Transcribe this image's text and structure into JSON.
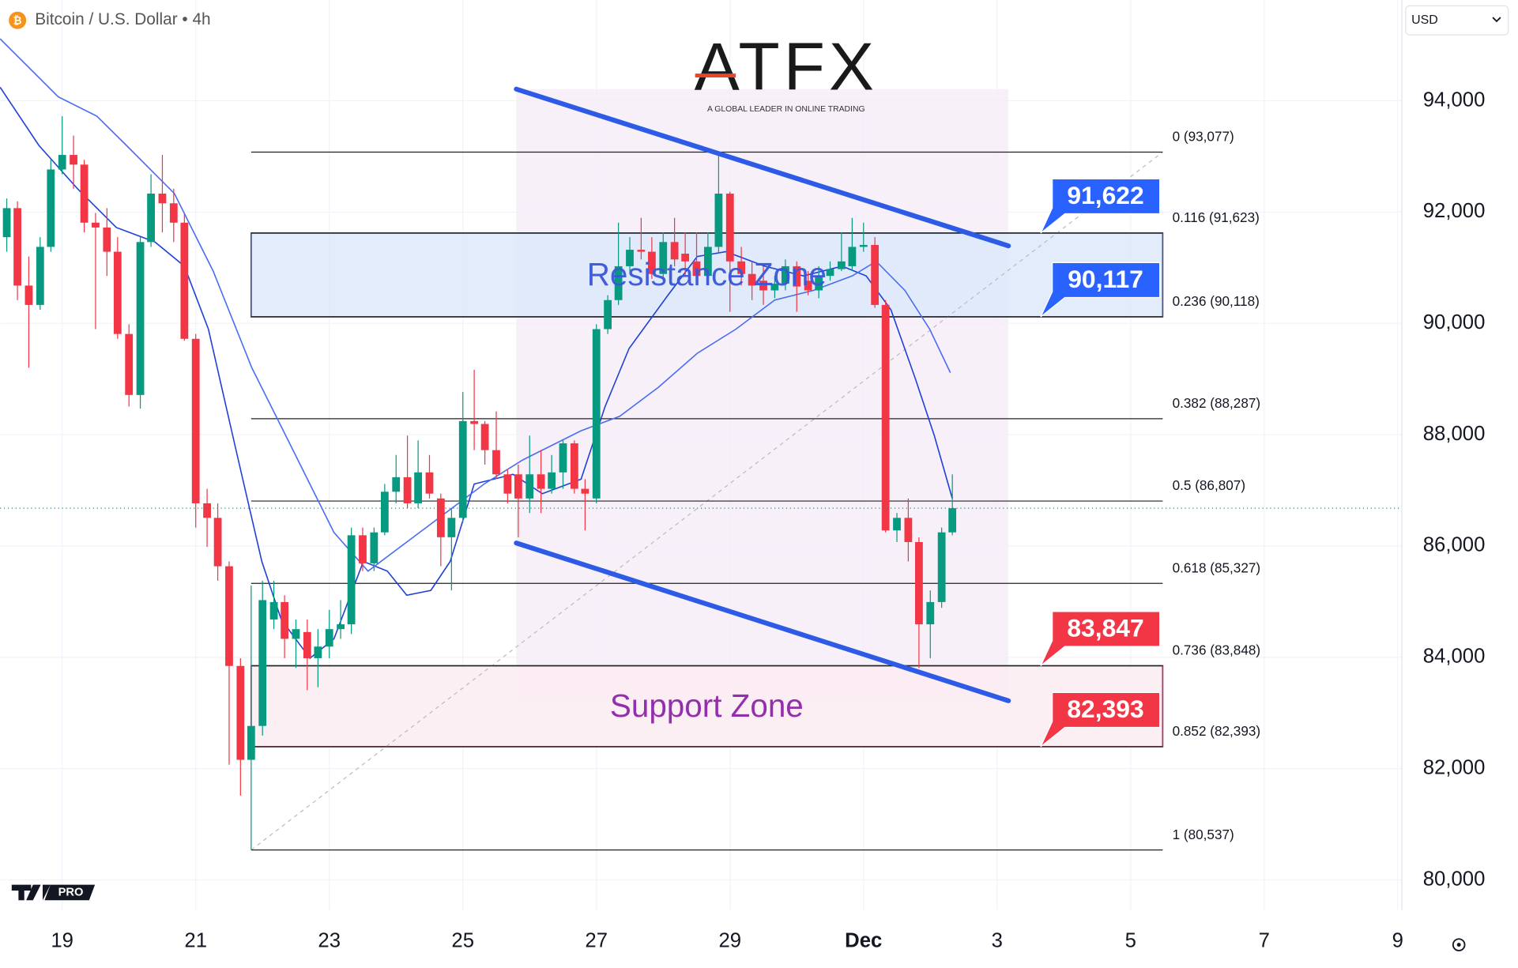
{
  "header": {
    "symbol": "Bitcoin / U.S. Dollar • 4h",
    "currency": "USD"
  },
  "logo": {
    "name": "ATFX",
    "tagline": "A GLOBAL LEADER IN ONLINE TRADING"
  },
  "badge": "PRO",
  "chart_data": {
    "type": "candlestick",
    "x": [
      18.17,
      18.33,
      18.5,
      18.67,
      18.83,
      19,
      19.17,
      19.33,
      19.5,
      19.67,
      19.83,
      20,
      20.17,
      20.33,
      20.5,
      20.67,
      20.83,
      21,
      21.17,
      21.33,
      21.5,
      21.67,
      21.83,
      22,
      22.17,
      22.33,
      22.5,
      22.67,
      22.83,
      23,
      23.17,
      23.33,
      23.5,
      23.67,
      23.83,
      24,
      24.17,
      24.33,
      24.5,
      24.67,
      24.83,
      25,
      25.17,
      25.33,
      25.5,
      25.67,
      25.83,
      26,
      26.17,
      26.33,
      26.5,
      26.67,
      26.83,
      27,
      27.17,
      27.33,
      27.5,
      27.67,
      27.83,
      28,
      28.17,
      28.33,
      28.5,
      28.67,
      28.83,
      29,
      29.17,
      29.33,
      29.5,
      29.67,
      29.83,
      30,
      30.17,
      30.33,
      30.5,
      30.67,
      30.83,
      31,
      31.17,
      31.33,
      31.5,
      31.67,
      31.83,
      32,
      32.17,
      32.33
    ],
    "open": [
      91548,
      92070,
      90679,
      90331,
      91374,
      92765,
      93026,
      92852,
      91809,
      91722,
      91287,
      89809,
      88713,
      91461,
      92331,
      92157,
      91809,
      89722,
      86766,
      86505,
      85635,
      83844,
      82157,
      82766,
      84679,
      84992,
      84331,
      84453,
      83983,
      84192,
      84505,
      84592,
      86192,
      85688,
      86244,
      86974,
      87235,
      86766,
      87322,
      86853,
      86157,
      86505,
      88244,
      88192,
      87722,
      87287,
      87287,
      86853,
      87287,
      87027,
      87322,
      87844,
      87027,
      86853,
      89896,
      90418,
      91026,
      91322,
      91287,
      90887,
      91461,
      91252,
      91113,
      90852,
      91374,
      92331,
      91113,
      90887,
      90766,
      90592,
      90713,
      91026,
      90766,
      90592,
      90852,
      90974,
      91026,
      91374,
      91409,
      90331,
      86279,
      86505,
      86070,
      84592,
      84992,
      86244
    ],
    "high": [
      92244,
      92191,
      91200,
      91548,
      92939,
      93722,
      93374,
      92939,
      91983,
      92070,
      91548,
      89983,
      91548,
      92678,
      93026,
      92418,
      91983,
      89809,
      87027,
      86766,
      85722,
      83983,
      85288,
      85375,
      85375,
      85114,
      84679,
      84679,
      84505,
      84853,
      85027,
      86331,
      86331,
      86331,
      87114,
      87635,
      87983,
      87896,
      87635,
      86940,
      86679,
      88766,
      89166,
      88244,
      88418,
      87374,
      87461,
      87983,
      87722,
      87635,
      87896,
      87896,
      87201,
      89983,
      90505,
      91809,
      91548,
      91896,
      91548,
      91635,
      91896,
      91635,
      91635,
      91635,
      93026,
      92365,
      91374,
      91113,
      91026,
      90852,
      91148,
      91113,
      90939,
      91026,
      91113,
      91635,
      91896,
      91809,
      91548,
      90418,
      86592,
      86853,
      86157,
      85201,
      86331,
      87287
    ],
    "low": [
      91287,
      90418,
      89200,
      90244,
      91287,
      92678,
      92418,
      91635,
      89896,
      90852,
      89722,
      88505,
      88470,
      91374,
      91635,
      91461,
      89687,
      86331,
      85983,
      85375,
      82070,
      81514,
      80537,
      82592,
      84505,
      83983,
      83809,
      83409,
      83462,
      83983,
      84331,
      84418,
      85548,
      85548,
      86192,
      86766,
      86679,
      86679,
      86853,
      85635,
      85201,
      86418,
      87722,
      87461,
      87201,
      86766,
      86157,
      86592,
      86592,
      86940,
      87027,
      86940,
      86279,
      86766,
      89809,
      90331,
      90939,
      91148,
      90800,
      90766,
      91026,
      90852,
      90766,
      90766,
      91252,
      90209,
      90679,
      90418,
      90331,
      90452,
      90592,
      90209,
      90505,
      90452,
      90766,
      90939,
      90939,
      91287,
      90279,
      86244,
      86070,
      85722,
      83809,
      83983,
      84888,
      86192
    ],
    "close": [
      92070,
      90679,
      90331,
      91374,
      92765,
      93026,
      92852,
      91809,
      91722,
      91287,
      89809,
      88713,
      91461,
      92331,
      92157,
      91809,
      89722,
      86766,
      86505,
      85635,
      83844,
      82157,
      82766,
      85027,
      84992,
      84331,
      84505,
      83983,
      84192,
      84505,
      84592,
      86192,
      85688,
      86244,
      86974,
      87235,
      86766,
      87322,
      86940,
      86157,
      86505,
      88244,
      88192,
      87722,
      87287,
      86940,
      86853,
      87287,
      87027,
      87322,
      87844,
      87027,
      86940,
      89896,
      90418,
      91026,
      91322,
      91287,
      90887,
      91461,
      91148,
      91113,
      90852,
      91374,
      92331,
      91113,
      90887,
      90679,
      90592,
      90713,
      91026,
      90661,
      90592,
      90852,
      90974,
      91113,
      91374,
      91409,
      90331,
      86279,
      86505,
      86070,
      84592,
      84992,
      86244,
      86679
    ],
    "up_color": "#089981",
    "down_color": "#f23645",
    "overlays": [
      {
        "color": "#1e3fd8",
        "x": [
          18.07,
          18.65,
          19.23,
          19.81,
          20.39,
          20.83,
          21.19,
          21.62,
          21.99,
          22.28,
          22.71,
          23.07,
          23.51,
          23.87,
          24.16,
          24.52,
          24.81,
          25.17,
          25.75,
          26.19,
          26.77,
          27.13,
          27.49,
          28.07,
          28.51,
          28.94,
          29.52,
          30.1,
          30.68,
          31.04,
          31.41,
          31.77,
          32.06,
          32.33
        ],
        "values": [
          94243,
          93200,
          92418,
          91722,
          91461,
          91026,
          89896,
          87635,
          85722,
          84679,
          83983,
          84331,
          85722,
          85548,
          85114,
          85201,
          85722,
          87114,
          87287,
          86940,
          87201,
          88505,
          89548,
          90505,
          91200,
          91287,
          91026,
          90852,
          91026,
          90852,
          90244,
          89026,
          87983,
          86853
        ]
      },
      {
        "color": "#4a6cf0",
        "x": [
          18.07,
          18.94,
          19.52,
          19.96,
          20.68,
          21.26,
          21.84,
          22.42,
          23.07,
          23.58,
          24.16,
          24.74,
          25.32,
          25.9,
          26.77,
          27.35,
          27.93,
          28.51,
          29.09,
          29.67,
          30.25,
          30.83,
          31.19,
          31.62,
          31.99,
          32.3
        ],
        "values": [
          95113,
          94070,
          93722,
          93200,
          92331,
          90939,
          89200,
          87809,
          86244,
          85548,
          86070,
          86592,
          87114,
          87548,
          88070,
          88331,
          88853,
          89461,
          89896,
          90418,
          90592,
          90852,
          91113,
          90592,
          89896,
          89113
        ]
      }
    ],
    "channel": {
      "color": "#2e5be6",
      "x": [
        25.8,
        33.17
      ],
      "upper": [
        94209,
        91392
      ],
      "lower": [
        86053,
        83218
      ]
    },
    "fib_x": [
      21.83,
      35.48
    ],
    "fib_levels": [
      {
        "value": 93077,
        "label": "0 (93,077)"
      },
      {
        "value": 91623,
        "label": "0.116 (91,623)"
      },
      {
        "value": 90118,
        "label": "0.236 (90,118)"
      },
      {
        "value": 88287,
        "label": "0.382 (88,287)"
      },
      {
        "value": 86807,
        "label": "0.5 (86,807)"
      },
      {
        "value": 85327,
        "label": "0.618 (85,327)"
      },
      {
        "value": 83848,
        "label": "0.736 (83,848)"
      },
      {
        "value": 82393,
        "label": "0.852 (82,393)"
      },
      {
        "value": 80537,
        "label": "1 (80,537)"
      }
    ],
    "zones": [
      {
        "label": "Resistance Zone",
        "from": 90117,
        "to": 91622,
        "fill": "#dde9fb",
        "stroke": "#2a3f6e",
        "text_color": "#3a56d8"
      },
      {
        "label": "Support Zone",
        "from": 82393,
        "to": 83847,
        "fill": "#fcedf3",
        "stroke": "#9c1b4c",
        "text_color": "#8e24aa"
      }
    ],
    "price_tags": [
      {
        "value": 91622,
        "label": "91,622",
        "color": "#2962ff"
      },
      {
        "value": 90117,
        "label": "90,117",
        "color": "#2962ff"
      },
      {
        "value": 83847,
        "label": "83,847",
        "color": "#f23645"
      },
      {
        "value": 82393,
        "label": "82,393",
        "color": "#f23645"
      }
    ],
    "xlim": [
      18.07,
      39.06
    ],
    "xticks": [
      19,
      21,
      23,
      25,
      27,
      29,
      {
        "value": 31,
        "label": "Dec"
      },
      {
        "value": 33,
        "label": "3"
      },
      {
        "value": 35,
        "label": "5"
      },
      {
        "value": 37,
        "label": "7"
      },
      {
        "value": 39,
        "label": "9"
      }
    ],
    "ylim": [
      79460,
      95810
    ],
    "yticks": [
      {
        "value": 80000,
        "label": "80,000"
      },
      {
        "value": 82000,
        "label": "82,000"
      },
      {
        "value": 84000,
        "label": "84,000"
      },
      {
        "value": 86000,
        "label": "86,000"
      },
      {
        "value": 88000,
        "label": "88,000"
      },
      {
        "value": 90000,
        "label": "90,000"
      },
      {
        "value": 92000,
        "label": "92,000"
      },
      {
        "value": 94000,
        "label": "94,000"
      }
    ],
    "grid": true
  }
}
